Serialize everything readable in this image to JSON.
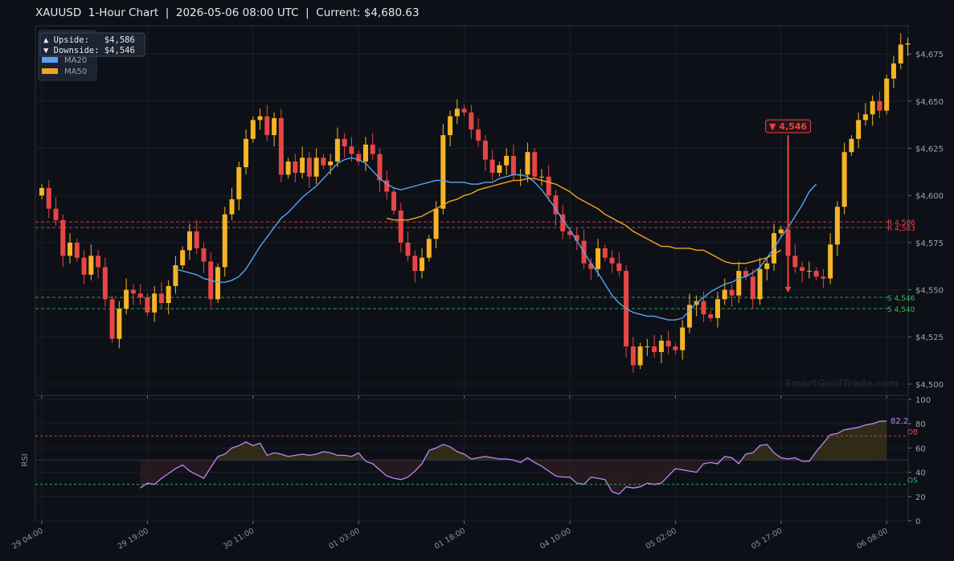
{
  "title": "XAUUSD  1-Hour Chart  |  2026-05-06 08:00 UTC  |  Current: $4,680.63",
  "watermark": "SmartGoldTrade.com",
  "info_box": {
    "upside": "▲ Upside:   $4,586",
    "downside": "▼ Downside: $4,546"
  },
  "colors": {
    "bull": "#f5b427",
    "bear": "#e84545",
    "ma20": "#5aa2f0",
    "ma50": "#f5a51c",
    "rsi": "#c085f5",
    "resistance": "#e84545",
    "support": "#2fbf5a"
  },
  "chart_data": [
    {
      "type": "candlestick",
      "title": "XAUUSD  1-Hour Chart  |  2026-05-06 08:00 UTC  |  Current: $4,680.63",
      "ylim": [
        4494,
        4690
      ],
      "yticks": [
        4500,
        4525,
        4550,
        4575,
        4600,
        4625,
        4650,
        4675
      ],
      "ytick_labels": [
        "$4,500",
        "$4,525",
        "$4,550",
        "$4,575",
        "$4,600",
        "$4,625",
        "$4,650",
        "$4,675"
      ],
      "xticks": [
        0,
        15,
        30,
        45,
        60,
        75,
        90,
        105,
        120
      ],
      "xtick_labels": [
        "29 04:00",
        "29 19:00",
        "30 11:00",
        "01 03:00",
        "01 18:00",
        "04 10:00",
        "05 02:00",
        "05 17:00",
        "06 08:00"
      ],
      "legend": [
        "MA20",
        "MA50"
      ],
      "legend_position": "top-left",
      "grid": true,
      "closes": [
        4604,
        4593,
        4587,
        4568,
        4575,
        4567,
        4558,
        4568,
        4562,
        4545,
        4524,
        4540,
        4550,
        4548,
        4546,
        4538,
        4548,
        4543,
        4552,
        4563,
        4571,
        4581,
        4572,
        4565,
        4545,
        4562,
        4590,
        4598,
        4615,
        4630,
        4640,
        4642,
        4632,
        4641,
        4611,
        4618,
        4612,
        4620,
        4610,
        4620,
        4616,
        4618,
        4630,
        4626,
        4622,
        4618,
        4627,
        4622,
        4608,
        4602,
        4592,
        4575,
        4568,
        4560,
        4567,
        4577,
        4593,
        4632,
        4642,
        4646,
        4644,
        4635,
        4629,
        4619,
        4612,
        4616,
        4621,
        4611,
        4611,
        4623,
        4610,
        4610,
        4600,
        4590,
        4581,
        4579,
        4576,
        4564,
        4561,
        4572,
        4567,
        4564,
        4560,
        4520,
        4510,
        4520,
        4520,
        4517,
        4523,
        4520,
        4518,
        4530,
        4542,
        4544,
        4537,
        4535,
        4545,
        4550,
        4547,
        4560,
        4557,
        4545,
        4561,
        4564,
        4580,
        4582,
        4568,
        4562,
        4560,
        4560,
        4557,
        4556,
        4574,
        4594,
        4623,
        4630,
        4640,
        4643,
        4650,
        4645,
        4662,
        4670,
        4680,
        4680.63
      ],
      "series": [
        {
          "name": "MA20",
          "start_index": 19,
          "values": [
            4561,
            4560,
            4559,
            4558,
            4556,
            4555,
            4554,
            4554,
            4555,
            4557,
            4561,
            4567,
            4573,
            4578,
            4583,
            4588,
            4591,
            4595,
            4599,
            4602,
            4605,
            4609,
            4613,
            4617,
            4619,
            4620,
            4619,
            4617,
            4613,
            4609,
            4606,
            4604,
            4603,
            4604,
            4605,
            4606,
            4607,
            4608,
            4608,
            4607,
            4607,
            4607,
            4606,
            4606,
            4607,
            4607,
            4609,
            4610,
            4611,
            4611,
            4610,
            4607,
            4603,
            4598,
            4593,
            4587,
            4582,
            4576,
            4570,
            4564,
            4559,
            4553,
            4547,
            4543,
            4540,
            4538,
            4537,
            4536,
            4536,
            4535,
            4534,
            4534,
            4535,
            4539,
            4543,
            4546,
            4549,
            4551,
            4553,
            4554,
            4556,
            4557,
            4559,
            4562,
            4567,
            4572,
            4578,
            4583,
            4589,
            4595,
            4602,
            4606
          ]
        },
        {
          "name": "MA50",
          "start_index": 49,
          "values": [
            4588,
            4587,
            4587,
            4587,
            4588,
            4589,
            4591,
            4593,
            4595,
            4597,
            4598,
            4600,
            4601,
            4603,
            4604,
            4605,
            4606,
            4607,
            4608,
            4608,
            4609,
            4609,
            4608,
            4607,
            4606,
            4604,
            4602,
            4599,
            4597,
            4595,
            4593,
            4590,
            4588,
            4586,
            4584,
            4581,
            4579,
            4577,
            4575,
            4573,
            4573,
            4572,
            4572,
            4572,
            4571,
            4571,
            4569,
            4567,
            4565,
            4564,
            4564,
            4564,
            4565,
            4566,
            4567,
            4569,
            4571
          ]
        }
      ],
      "levels": [
        {
          "name": "R",
          "value": 4586,
          "label": "R 4,586"
        },
        {
          "name": "R",
          "value": 4583,
          "label": "R 4,583"
        },
        {
          "name": "S",
          "value": 4546,
          "label": "S 4,546"
        },
        {
          "name": "S",
          "value": 4540,
          "label": "S 4,540"
        }
      ],
      "annotation": {
        "label": "▼ 4,546",
        "index": 106,
        "from": 4632,
        "to": 4549
      }
    },
    {
      "type": "line",
      "ylabel": "RSI",
      "ylim": [
        0,
        100
      ],
      "yticks": [
        0,
        20,
        40,
        60,
        80,
        100
      ],
      "overbought": 70,
      "oversold": 30,
      "ob_label": "OB",
      "os_label": "OS",
      "last_value_label": "82.2",
      "series": [
        {
          "name": "RSI",
          "start_index": 14,
          "values": [
            27,
            31,
            30,
            35,
            39,
            43,
            46,
            41,
            38,
            35,
            44,
            53,
            55,
            60,
            62,
            65,
            62,
            64,
            54,
            56,
            55,
            53,
            54,
            55,
            54,
            55,
            57,
            56,
            54,
            54,
            53,
            56,
            49,
            47,
            42,
            37,
            35,
            34,
            36,
            41,
            47,
            58,
            60,
            63,
            61,
            57,
            55,
            51,
            52,
            53,
            52,
            51,
            51,
            50,
            48,
            52,
            48,
            45,
            41,
            37,
            36,
            36,
            31,
            30,
            36,
            35,
            34,
            24,
            22,
            28,
            27,
            28,
            31,
            30,
            31,
            37,
            43,
            42,
            41,
            40,
            47,
            48,
            47,
            53,
            52,
            47,
            55,
            56,
            62,
            63,
            56,
            52,
            51,
            52,
            49,
            49,
            57,
            64,
            71,
            72,
            75,
            76,
            77,
            79,
            80,
            82,
            82.2
          ]
        }
      ]
    }
  ]
}
